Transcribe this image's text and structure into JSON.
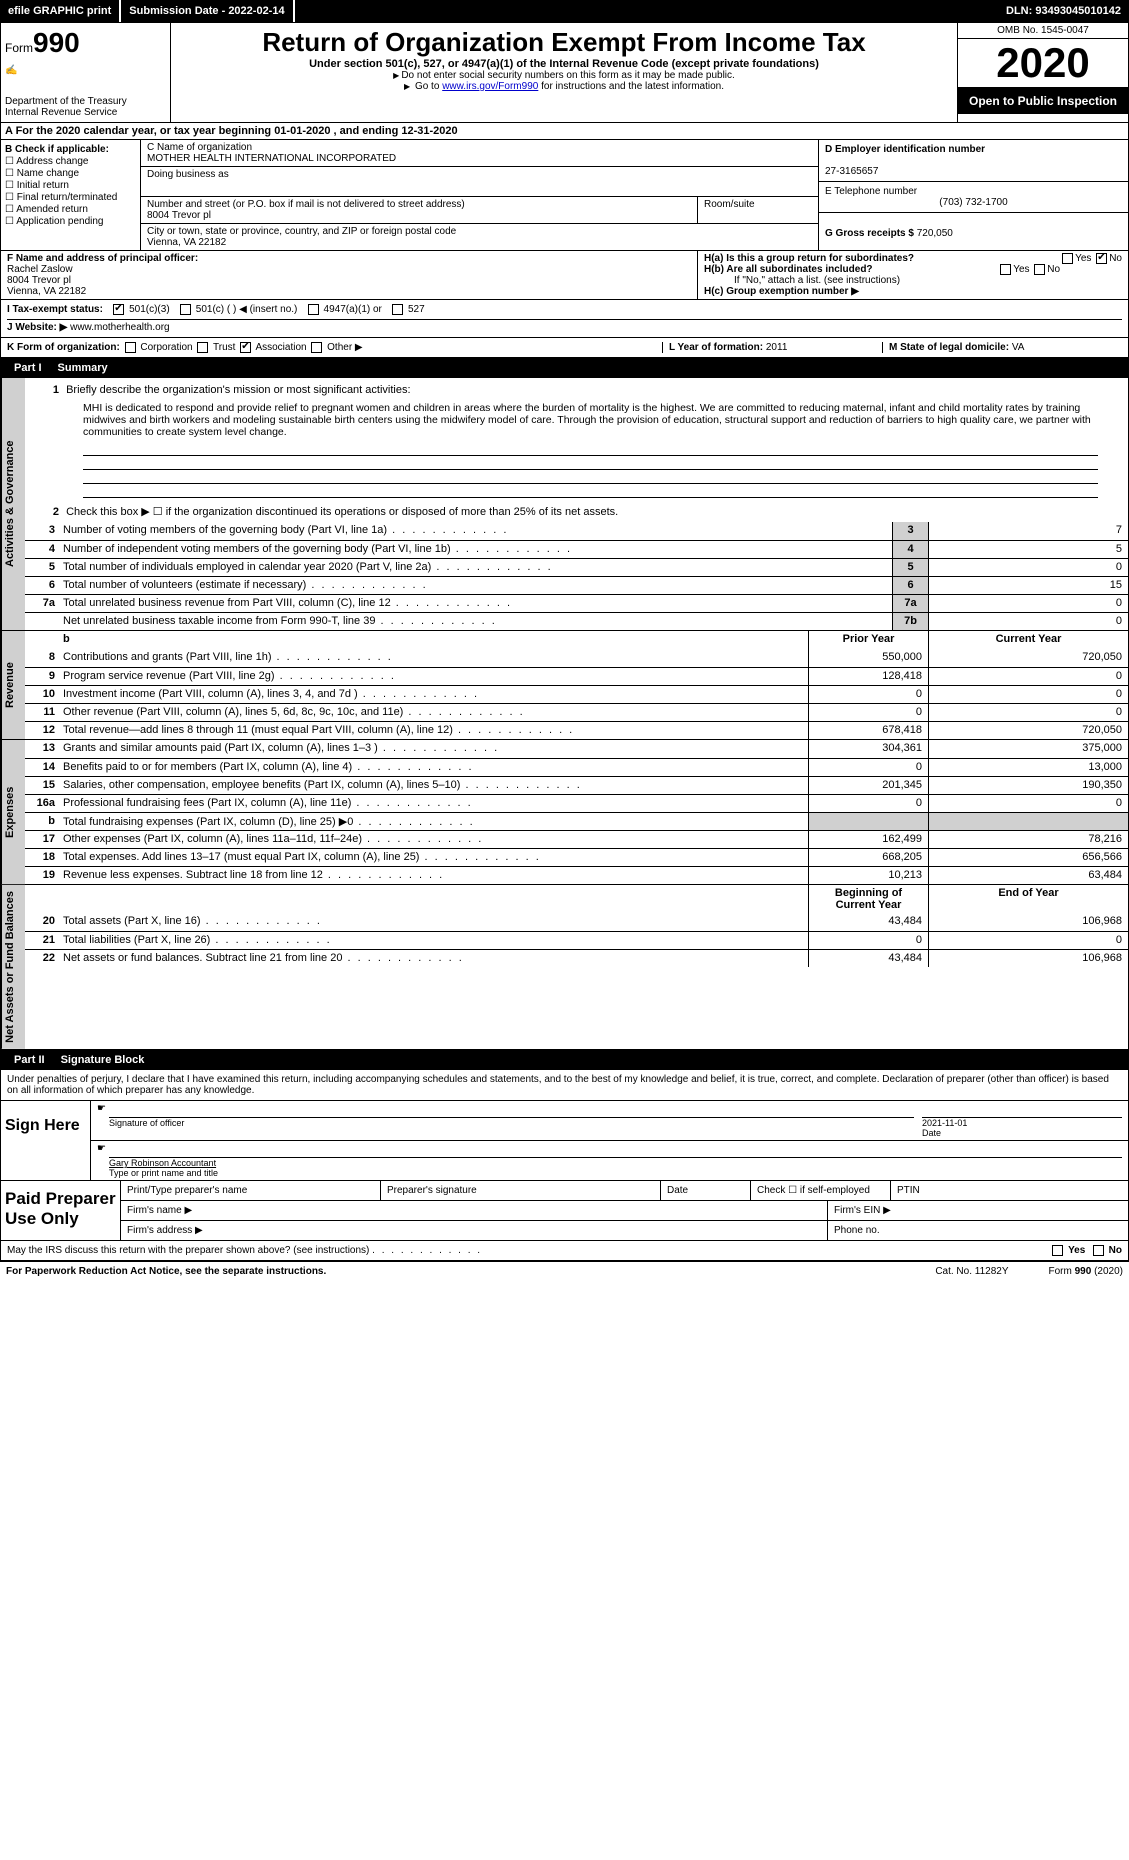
{
  "topbar": {
    "efile": "efile GRAPHIC print",
    "submission": "Submission Date - 2022-02-14",
    "dln": "DLN: 93493045010142"
  },
  "header": {
    "form_word": "Form",
    "form_num": "990",
    "dept": "Department of the Treasury\nInternal Revenue Service",
    "title": "Return of Organization Exempt From Income Tax",
    "subtitle": "Under section 501(c), 527, or 4947(a)(1) of the Internal Revenue Code (except private foundations)",
    "warn1": "Do not enter social security numbers on this form as it may be made public.",
    "warn2_pre": "Go to ",
    "warn2_link": "www.irs.gov/Form990",
    "warn2_post": " for instructions and the latest information.",
    "omb": "OMB No. 1545-0047",
    "year": "2020",
    "open": "Open to Public Inspection"
  },
  "row_a": "A For the 2020 calendar year, or tax year beginning 01-01-2020   , and ending 12-31-2020",
  "box_b": {
    "title": "B Check if applicable:",
    "items": [
      "Address change",
      "Name change",
      "Initial return",
      "Final return/terminated",
      "Amended return",
      "Application pending"
    ]
  },
  "box_c": {
    "label_name": "C Name of organization",
    "org": "MOTHER HEALTH INTERNATIONAL INCORPORATED",
    "dba_label": "Doing business as",
    "addr_label": "Number and street (or P.O. box if mail is not delivered to street address)",
    "addr": "8004 Trevor pl",
    "suite_label": "Room/suite",
    "city_label": "City or town, state or province, country, and ZIP or foreign postal code",
    "city": "Vienna, VA  22182"
  },
  "box_d": {
    "label": "D Employer identification number",
    "value": "27-3165657"
  },
  "box_e": {
    "label": "E Telephone number",
    "value": "(703) 732-1700"
  },
  "box_g": {
    "label": "G Gross receipts $",
    "value": "720,050"
  },
  "box_f": {
    "label": "F  Name and address of principal officer:",
    "name": "Rachel Zaslow",
    "addr1": "8004 Trevor pl",
    "addr2": "Vienna, VA  22182"
  },
  "box_h": {
    "ha": "H(a)  Is this a group return for subordinates?",
    "hb": "H(b)  Are all subordinates included?",
    "hb_note": "If \"No,\" attach a list. (see instructions)",
    "hc": "H(c)  Group exemption number ▶",
    "yes": "Yes",
    "no": "No"
  },
  "box_i": {
    "label": "I   Tax-exempt status:",
    "o1": "501(c)(3)",
    "o2": "501(c) (  ) ◀ (insert no.)",
    "o3": "4947(a)(1) or",
    "o4": "527"
  },
  "box_j": {
    "label": "J   Website: ▶",
    "value": "www.motherhealth.org"
  },
  "box_k": {
    "label": "K Form of organization:",
    "o1": "Corporation",
    "o2": "Trust",
    "o3": "Association",
    "o4": "Other ▶"
  },
  "box_l": {
    "label": "L Year of formation:",
    "value": "2011"
  },
  "box_m": {
    "label": "M State of legal domicile:",
    "value": "VA"
  },
  "part1": {
    "label": "Part I",
    "title": "Summary"
  },
  "summary": {
    "q1": "Briefly describe the organization's mission or most significant activities:",
    "mission": "MHI is dedicated to respond and provide relief to pregnant women and children in areas where the burden of mortality is the highest. We are committed to reducing maternal, infant and child mortality rates by training midwives and birth workers and modeling sustainable birth centers using the midwifery model of care. Through the provision of education, structural support and reduction of barriers to high quality care, we partner with communities to create system level change.",
    "q2": "Check this box ▶ ☐  if the organization discontinued its operations or disposed of more than 25% of its net assets.",
    "lines_gov": [
      {
        "n": "3",
        "d": "Number of voting members of the governing body (Part VI, line 1a)",
        "box": "3",
        "v": "7"
      },
      {
        "n": "4",
        "d": "Number of independent voting members of the governing body (Part VI, line 1b)",
        "box": "4",
        "v": "5"
      },
      {
        "n": "5",
        "d": "Total number of individuals employed in calendar year 2020 (Part V, line 2a)",
        "box": "5",
        "v": "0"
      },
      {
        "n": "6",
        "d": "Total number of volunteers (estimate if necessary)",
        "box": "6",
        "v": "15"
      },
      {
        "n": "7a",
        "d": "Total unrelated business revenue from Part VIII, column (C), line 12",
        "box": "7a",
        "v": "0"
      },
      {
        "n": "",
        "d": "Net unrelated business taxable income from Form 990-T, line 39",
        "box": "7b",
        "v": "0"
      }
    ],
    "col_prior": "Prior Year",
    "col_curr": "Current Year",
    "lines_rev": [
      {
        "n": "8",
        "d": "Contributions and grants (Part VIII, line 1h)",
        "p": "550,000",
        "c": "720,050"
      },
      {
        "n": "9",
        "d": "Program service revenue (Part VIII, line 2g)",
        "p": "128,418",
        "c": "0"
      },
      {
        "n": "10",
        "d": "Investment income (Part VIII, column (A), lines 3, 4, and 7d )",
        "p": "0",
        "c": "0"
      },
      {
        "n": "11",
        "d": "Other revenue (Part VIII, column (A), lines 5, 6d, 8c, 9c, 10c, and 11e)",
        "p": "0",
        "c": "0"
      },
      {
        "n": "12",
        "d": "Total revenue—add lines 8 through 11 (must equal Part VIII, column (A), line 12)",
        "p": "678,418",
        "c": "720,050"
      }
    ],
    "lines_exp": [
      {
        "n": "13",
        "d": "Grants and similar amounts paid (Part IX, column (A), lines 1–3 )",
        "p": "304,361",
        "c": "375,000"
      },
      {
        "n": "14",
        "d": "Benefits paid to or for members (Part IX, column (A), line 4)",
        "p": "0",
        "c": "13,000"
      },
      {
        "n": "15",
        "d": "Salaries, other compensation, employee benefits (Part IX, column (A), lines 5–10)",
        "p": "201,345",
        "c": "190,350"
      },
      {
        "n": "16a",
        "d": "Professional fundraising fees (Part IX, column (A), line 11e)",
        "p": "0",
        "c": "0"
      },
      {
        "n": "b",
        "d": "Total fundraising expenses (Part IX, column (D), line 25) ▶0",
        "p": "",
        "c": "",
        "shaded": true
      },
      {
        "n": "17",
        "d": "Other expenses (Part IX, column (A), lines 11a–11d, 11f–24e)",
        "p": "162,499",
        "c": "78,216"
      },
      {
        "n": "18",
        "d": "Total expenses. Add lines 13–17 (must equal Part IX, column (A), line 25)",
        "p": "668,205",
        "c": "656,566"
      },
      {
        "n": "19",
        "d": "Revenue less expenses. Subtract line 18 from line 12",
        "p": "10,213",
        "c": "63,484"
      }
    ],
    "col_begin": "Beginning of Current Year",
    "col_end": "End of Year",
    "lines_net": [
      {
        "n": "20",
        "d": "Total assets (Part X, line 16)",
        "p": "43,484",
        "c": "106,968"
      },
      {
        "n": "21",
        "d": "Total liabilities (Part X, line 26)",
        "p": "0",
        "c": "0"
      },
      {
        "n": "22",
        "d": "Net assets or fund balances. Subtract line 21 from line 20",
        "p": "43,484",
        "c": "106,968"
      }
    ]
  },
  "sidetabs": {
    "gov": "Activities & Governance",
    "rev": "Revenue",
    "exp": "Expenses",
    "net": "Net Assets or Fund Balances"
  },
  "part2": {
    "label": "Part II",
    "title": "Signature Block"
  },
  "sig": {
    "intro": "Under penalties of perjury, I declare that I have examined this return, including accompanying schedules and statements, and to the best of my knowledge and belief, it is true, correct, and complete. Declaration of preparer (other than officer) is based on all information of which preparer has any knowledge.",
    "sign_here": "Sign Here",
    "sig_off": "Signature of officer",
    "date": "Date",
    "date_val": "2021-11-01",
    "name": "Gary Robinson  Accountant",
    "name_label": "Type or print name and title"
  },
  "prep": {
    "label": "Paid Preparer Use Only",
    "h1": "Print/Type preparer's name",
    "h2": "Preparer's signature",
    "h3": "Date",
    "h4": "Check ☐ if self-employed",
    "h5": "PTIN",
    "firm_name": "Firm's name    ▶",
    "firm_ein": "Firm's EIN ▶",
    "firm_addr": "Firm's address ▶",
    "phone": "Phone no."
  },
  "discuss": "May the IRS discuss this return with the preparer shown above? (see instructions)",
  "footer": {
    "pra": "For Paperwork Reduction Act Notice, see the separate instructions.",
    "cat": "Cat. No. 11282Y",
    "form": "Form 990 (2020)"
  }
}
